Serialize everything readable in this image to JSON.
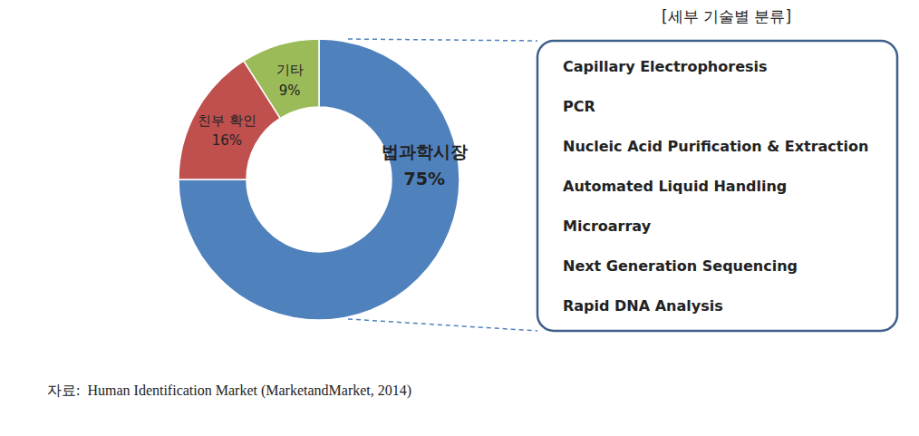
{
  "chart_data": {
    "type": "pie",
    "categories": [
      "법과학시장",
      "친부 확인",
      "기타"
    ],
    "values": [
      75,
      16,
      9
    ],
    "value_labels": [
      "75%",
      "16%",
      "9%"
    ],
    "colors": [
      "#4f81bd",
      "#c0504d",
      "#9bbb59"
    ],
    "data_labels": true,
    "annotation_title": "[세부 기술별 분류]",
    "annotations": [
      "Capillary Electrophoresis",
      "PCR",
      "Nucleic Acid Purification & Extraction",
      "Automated Liquid Handling",
      "Microarray",
      "Next Generation Sequencing",
      "Rapid DNA Analysis"
    ],
    "caption": "자료:  Human Identification Market (MarketandMarket, 2014)"
  }
}
